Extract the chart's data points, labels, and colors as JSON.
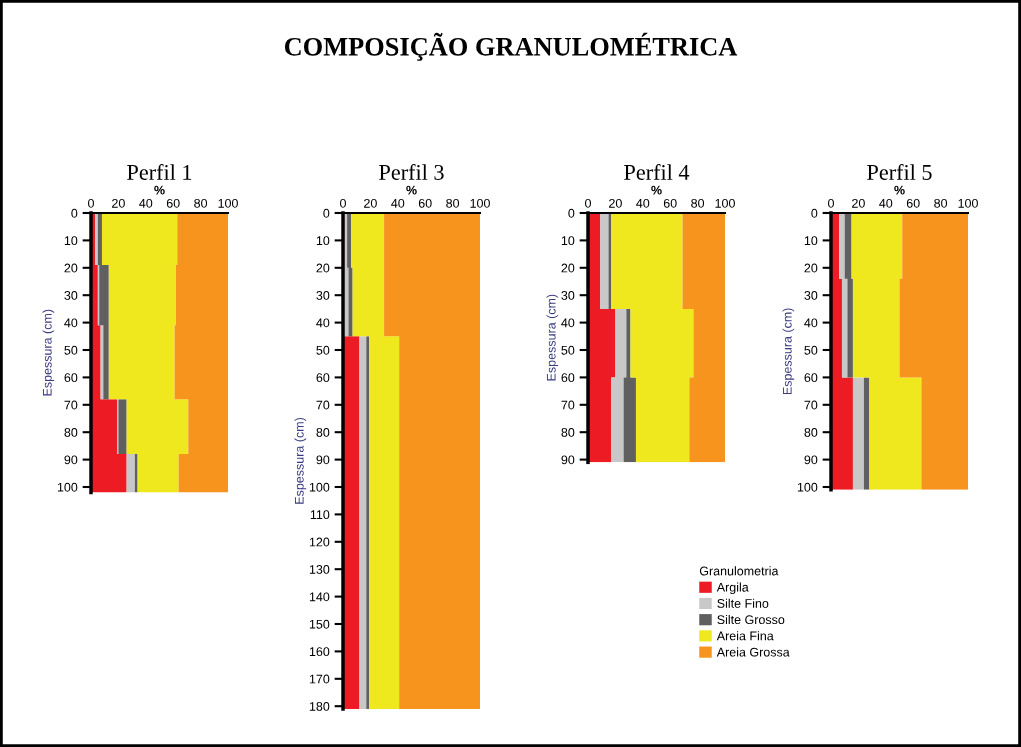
{
  "chart_data": [
    {
      "type": "area",
      "orientation": "horizontal",
      "stacked": true,
      "title": "Perfil 1",
      "xlabel": "%",
      "ylabel": "Espessura (cm)",
      "annotations": [
        "COMPOSIÇÃO GRANULOMÉTRICA"
      ],
      "legend": "bottom right",
      "legend_title": "Granulometria",
      "x": [
        0,
        19,
        19,
        41,
        41,
        68,
        68,
        88,
        88,
        102
      ],
      "series": [
        {
          "name": "Argila",
          "color": "#ed1c24",
          "values": [
            3,
            3,
            5,
            5,
            7,
            7,
            19,
            19,
            26,
            26
          ]
        },
        {
          "name": "Silte Fino",
          "color": "#c8c8c8",
          "values": [
            2,
            2,
            1,
            1,
            2,
            2,
            1,
            1,
            6,
            6
          ]
        },
        {
          "name": "Silte Grosso",
          "color": "#606060",
          "values": [
            3,
            3,
            7,
            7,
            4,
            4,
            6,
            6,
            2,
            2
          ]
        },
        {
          "name": "Areia Fina",
          "color": "#f0e81e",
          "values": [
            55,
            55,
            49,
            49,
            48,
            48,
            45,
            45,
            30,
            30
          ]
        },
        {
          "name": "Areia Grossa",
          "color": "#f7941d",
          "values": [
            37,
            37,
            38,
            38,
            39,
            39,
            29,
            29,
            36,
            36
          ]
        }
      ],
      "xlim": [
        0,
        100
      ],
      "xticks": [
        0,
        20,
        40,
        60,
        80,
        100
      ],
      "ylim": [
        102,
        0
      ],
      "yticks": [
        0,
        10,
        20,
        30,
        40,
        50,
        60,
        70,
        80,
        90,
        100
      ]
    },
    {
      "type": "area",
      "orientation": "horizontal",
      "stacked": true,
      "title": "Perfil 3",
      "xlabel": "%",
      "ylabel": "Espessura (cm)",
      "x": [
        0,
        20,
        20,
        45,
        45,
        181
      ],
      "series": [
        {
          "color": "#ed1c24",
          "values": [
            1,
            1,
            1,
            1,
            12,
            12
          ]
        },
        {
          "color": "#c8c8c8",
          "values": [
            2,
            2,
            3,
            3,
            5,
            5
          ]
        },
        {
          "color": "#606060",
          "values": [
            3,
            3,
            3,
            3,
            2,
            2
          ]
        },
        {
          "color": "#f0e81e",
          "values": [
            24,
            24,
            23,
            23,
            22,
            22
          ]
        },
        {
          "color": "#f7941d",
          "values": [
            70,
            70,
            70,
            70,
            59,
            59
          ]
        }
      ],
      "xlim": [
        0,
        100
      ],
      "xticks": [
        0,
        20,
        40,
        60,
        80,
        100
      ],
      "ylim": [
        181,
        0
      ],
      "yticks": [
        0,
        10,
        20,
        30,
        40,
        50,
        60,
        70,
        80,
        90,
        100,
        110,
        120,
        130,
        140,
        150,
        160,
        170,
        180
      ]
    },
    {
      "type": "area",
      "orientation": "horizontal",
      "stacked": true,
      "title": "Perfil 4",
      "xlabel": "%",
      "ylabel": "Espessura (cm)",
      "x": [
        0,
        35,
        35,
        60,
        60,
        91
      ],
      "series": [
        {
          "color": "#ed1c24",
          "values": [
            9,
            9,
            20,
            20,
            17,
            17
          ]
        },
        {
          "color": "#c8c8c8",
          "values": [
            6,
            6,
            8,
            8,
            9,
            9
          ]
        },
        {
          "color": "#606060",
          "values": [
            2,
            2,
            3,
            3,
            9,
            9
          ]
        },
        {
          "color": "#f0e81e",
          "values": [
            52,
            52,
            46,
            46,
            39,
            39
          ]
        },
        {
          "color": "#f7941d",
          "values": [
            31,
            31,
            23,
            23,
            26,
            26
          ]
        }
      ],
      "xlim": [
        0,
        100
      ],
      "xticks": [
        0,
        20,
        40,
        60,
        80,
        100
      ],
      "ylim": [
        91,
        0
      ],
      "yticks": [
        0,
        10,
        20,
        30,
        40,
        50,
        60,
        70,
        80,
        90
      ]
    },
    {
      "type": "area",
      "orientation": "horizontal",
      "stacked": true,
      "title": "Perfil 5",
      "xlabel": "%",
      "ylabel": "Espessura (cm)",
      "x": [
        0,
        24,
        24,
        60,
        60,
        101
      ],
      "series": [
        {
          "color": "#ed1c24",
          "values": [
            6,
            6,
            8,
            8,
            16,
            16
          ]
        },
        {
          "color": "#c8c8c8",
          "values": [
            4,
            4,
            4,
            4,
            8,
            8
          ]
        },
        {
          "color": "#606060",
          "values": [
            5,
            5,
            4,
            4,
            4,
            4
          ]
        },
        {
          "color": "#f0e81e",
          "values": [
            37,
            37,
            34,
            34,
            38,
            38
          ]
        },
        {
          "color": "#f7941d",
          "values": [
            48,
            48,
            50,
            50,
            34,
            34
          ]
        }
      ],
      "xlim": [
        0,
        100
      ],
      "xticks": [
        0,
        20,
        40,
        60,
        80,
        100
      ],
      "ylim": [
        101,
        0
      ],
      "yticks": [
        0,
        10,
        20,
        30,
        40,
        50,
        60,
        70,
        80,
        90,
        100
      ]
    }
  ]
}
